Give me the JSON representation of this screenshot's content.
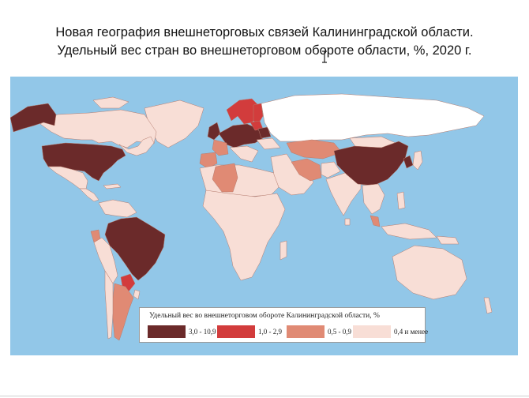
{
  "title": {
    "line1": "Новая география внешнеторговых связей Калининградской области.",
    "line2": "Удельный вес стран во внешнеторговом обороте области, %, 2020 г."
  },
  "colors": {
    "ocean": "#92c7e8",
    "no_data": "#ffffff",
    "cat1": "#6b2a2a",
    "cat2": "#d23c3c",
    "cat3": "#e08a74",
    "cat4": "#f8ded6",
    "border": "#b57b6e"
  },
  "legend": {
    "title": "Удельный вес во внешнеторговом обороте Калининградской области, %",
    "items": [
      {
        "label": "3,0 - 10,9",
        "color": "#6b2a2a"
      },
      {
        "label": "1,0 - 2,9",
        "color": "#d23c3c"
      },
      {
        "label": "0,5 - 0,9",
        "color": "#e08a74"
      },
      {
        "label": "0,4 и менее",
        "color": "#f8ded6"
      }
    ]
  },
  "regions": [
    {
      "id": "alaska",
      "category": "3,0 - 10,9"
    },
    {
      "id": "canada",
      "category": "0,4 и менее"
    },
    {
      "id": "usa",
      "category": "3,0 - 10,9"
    },
    {
      "id": "mexico",
      "category": "0,4 и менее"
    },
    {
      "id": "central-america",
      "category": "0,4 и менее"
    },
    {
      "id": "greenland",
      "category": "0,4 и менее"
    },
    {
      "id": "brazil",
      "category": "3,0 - 10,9"
    },
    {
      "id": "paraguay",
      "category": "1,0 - 2,9"
    },
    {
      "id": "argentina",
      "category": "0,5 - 0,9"
    },
    {
      "id": "ecuador",
      "category": "0,5 - 0,9"
    },
    {
      "id": "south-america-other",
      "category": "0,4 и менее"
    },
    {
      "id": "europe-core",
      "category": "3,0 - 10,9"
    },
    {
      "id": "scandinavia",
      "category": "1,0 - 2,9"
    },
    {
      "id": "iberia",
      "category": "0,5 - 0,9"
    },
    {
      "id": "algeria",
      "category": "0,5 - 0,9"
    },
    {
      "id": "africa",
      "category": "0,4 и менее"
    },
    {
      "id": "iran",
      "category": "0,5 - 0,9"
    },
    {
      "id": "central-asia",
      "category": "0,5 - 0,9"
    },
    {
      "id": "middle-east",
      "category": "0,4 и менее"
    },
    {
      "id": "india",
      "category": "0,4 и менее"
    },
    {
      "id": "china",
      "category": "3,0 - 10,9"
    },
    {
      "id": "korea",
      "category": "3,0 - 10,9"
    },
    {
      "id": "southeast-asia",
      "category": "0,4 и менее"
    },
    {
      "id": "malaysia",
      "category": "0,5 - 0,9"
    },
    {
      "id": "australia",
      "category": "0,4 и менее"
    },
    {
      "id": "russia",
      "category": "no data"
    }
  ]
}
